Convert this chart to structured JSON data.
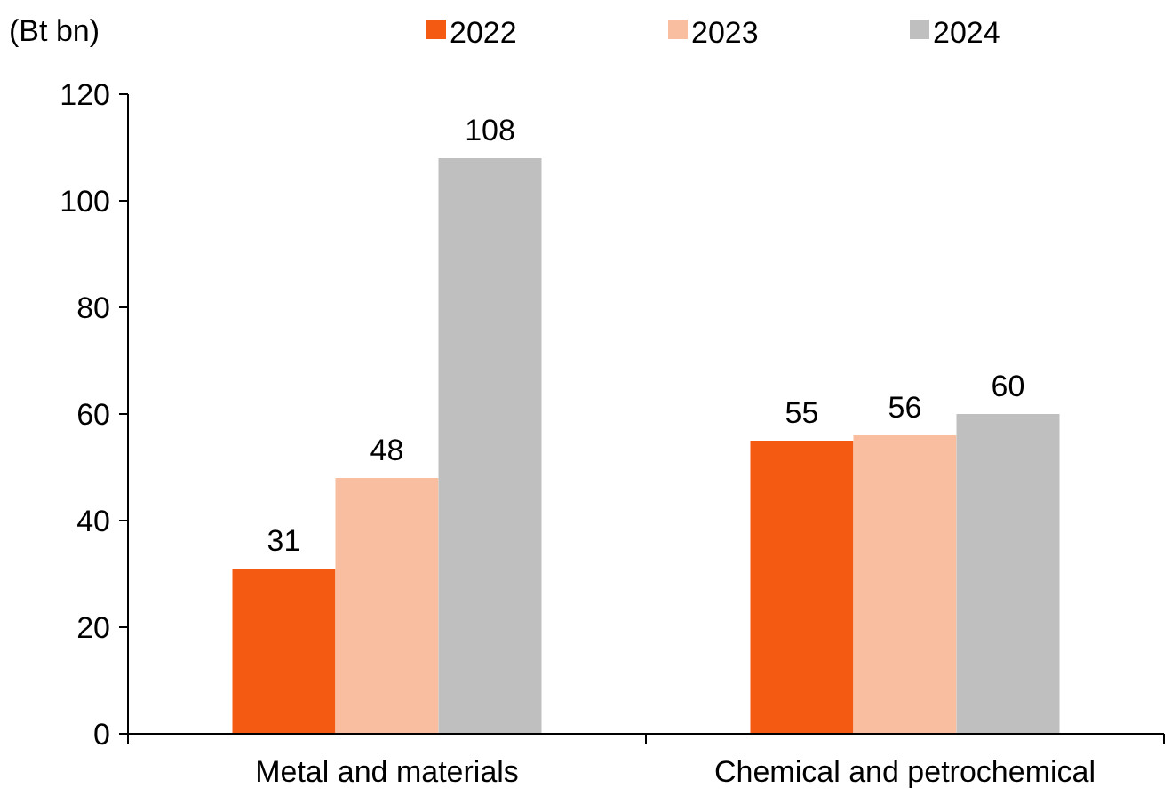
{
  "chart_data": {
    "type": "bar",
    "ylabel": "(Bt bn)",
    "categories": [
      "Metal and materials",
      "Chemical and petrochemical"
    ],
    "series": [
      {
        "name": "2022",
        "color": "#f55a12",
        "values": [
          31,
          55
        ]
      },
      {
        "name": "2023",
        "color": "#f9bda0",
        "values": [
          48,
          56
        ]
      },
      {
        "name": "2024",
        "color": "#bfbfbf",
        "values": [
          108,
          60
        ]
      }
    ],
    "ylim": [
      0,
      120
    ],
    "yticks": [
      0,
      20,
      40,
      60,
      80,
      100,
      120
    ],
    "data_labels": true,
    "legend": "top",
    "grid": false
  }
}
